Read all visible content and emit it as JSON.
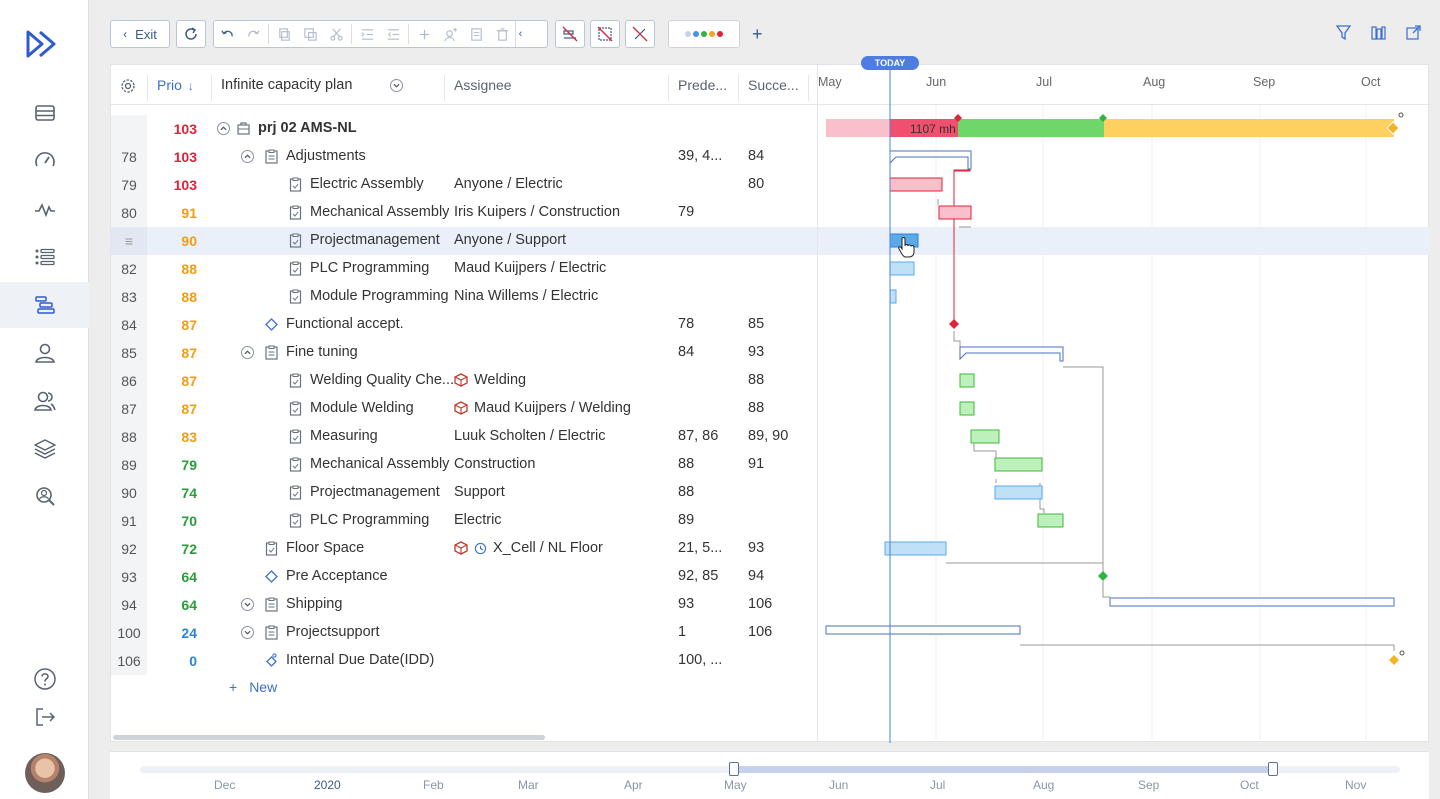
{
  "toolbar": {
    "exit_label": "Exit",
    "palette_colors": [
      "#c9d3e0",
      "#4a90e2",
      "#2fb344",
      "#f5a623",
      "#e0223a"
    ],
    "add_label": "+"
  },
  "grid": {
    "headers": {
      "prio": "Prio",
      "plan": "Infinite capacity plan",
      "assignee": "Assignee",
      "predecessors": "Prede...",
      "successors": "Succe..."
    },
    "colors": {
      "red": "#e0223a",
      "orange": "#f39c12",
      "green": "#2a9d3a",
      "blue": "#2c82d9"
    },
    "rows": [
      {
        "num": "",
        "prio": "103",
        "pc": "red",
        "name": "prj 02 AMS-NL",
        "assignee": "",
        "pred": "",
        "succ": "",
        "level": 0,
        "type": "project",
        "toggle": "up"
      },
      {
        "num": "78",
        "prio": "103",
        "pc": "red",
        "name": "Adjustments",
        "assignee": "",
        "pred": "39, 4...",
        "succ": "84",
        "level": 1,
        "type": "group",
        "toggle": "up"
      },
      {
        "num": "79",
        "prio": "103",
        "pc": "red",
        "name": "Electric Assembly",
        "assignee": "Anyone / Electric",
        "pred": "",
        "succ": "80",
        "level": 2,
        "type": "task"
      },
      {
        "num": "80",
        "prio": "91",
        "pc": "orange",
        "name": "Mechanical Assembly",
        "assignee": "Iris Kuipers / Construction",
        "pred": "79",
        "succ": "",
        "level": 2,
        "type": "task"
      },
      {
        "num": "",
        "prio": "90",
        "pc": "orange",
        "name": "Projectmanagement",
        "assignee": "Anyone / Support",
        "pred": "",
        "succ": "",
        "level": 2,
        "type": "task",
        "selected": true
      },
      {
        "num": "82",
        "prio": "88",
        "pc": "orange",
        "name": "PLC Programming",
        "assignee": "Maud Kuijpers / Electric",
        "pred": "",
        "succ": "",
        "level": 2,
        "type": "task"
      },
      {
        "num": "83",
        "prio": "88",
        "pc": "orange",
        "name": "Module Programming",
        "assignee": "Nina Willems / Electric",
        "pred": "",
        "succ": "",
        "level": 2,
        "type": "task"
      },
      {
        "num": "84",
        "prio": "87",
        "pc": "orange",
        "name": "Functional accept.",
        "assignee": "",
        "pred": "78",
        "succ": "85",
        "level": 1,
        "type": "milestone"
      },
      {
        "num": "85",
        "prio": "87",
        "pc": "orange",
        "name": "Fine tuning",
        "assignee": "",
        "pred": "84",
        "succ": "93",
        "level": 1,
        "type": "group",
        "toggle": "up"
      },
      {
        "num": "86",
        "prio": "87",
        "pc": "orange",
        "name": "Welding Quality Che...",
        "assignee": "Welding",
        "pred": "",
        "succ": "88",
        "level": 2,
        "type": "task",
        "resource": true
      },
      {
        "num": "87",
        "prio": "87",
        "pc": "orange",
        "name": "Module Welding",
        "assignee": "Maud Kuijpers / Welding",
        "pred": "",
        "succ": "88",
        "level": 2,
        "type": "task",
        "resource": true
      },
      {
        "num": "88",
        "prio": "83",
        "pc": "orange",
        "name": "Measuring",
        "assignee": "Luuk Scholten / Electric",
        "pred": "87, 86",
        "succ": "89, 90",
        "level": 2,
        "type": "task"
      },
      {
        "num": "89",
        "prio": "79",
        "pc": "green",
        "name": "Mechanical Assembly",
        "assignee": "Construction",
        "pred": "88",
        "succ": "91",
        "level": 2,
        "type": "task"
      },
      {
        "num": "90",
        "prio": "74",
        "pc": "green",
        "name": "Projectmanagement",
        "assignee": "Support",
        "pred": "88",
        "succ": "",
        "level": 2,
        "type": "task"
      },
      {
        "num": "91",
        "prio": "70",
        "pc": "green",
        "name": "PLC Programming",
        "assignee": "Electric",
        "pred": "89",
        "succ": "",
        "level": 2,
        "type": "task"
      },
      {
        "num": "92",
        "prio": "72",
        "pc": "green",
        "name": "Floor Space",
        "assignee": "X_Cell / NL Floor",
        "pred": "21, 5...",
        "succ": "93",
        "level": 1,
        "type": "task",
        "resource": true,
        "clock": true
      },
      {
        "num": "93",
        "prio": "64",
        "pc": "green",
        "name": "Pre Acceptance",
        "assignee": "",
        "pred": "92, 85",
        "succ": "94",
        "level": 1,
        "type": "milestone"
      },
      {
        "num": "94",
        "prio": "64",
        "pc": "green",
        "name": "Shipping",
        "assignee": "",
        "pred": "93",
        "succ": "106",
        "level": 1,
        "type": "group",
        "toggle": "down"
      },
      {
        "num": "100",
        "prio": "24",
        "pc": "blue",
        "name": "Projectsupport",
        "assignee": "",
        "pred": "1",
        "succ": "106",
        "level": 1,
        "type": "group",
        "toggle": "down"
      },
      {
        "num": "106",
        "prio": "0",
        "pc": "blue",
        "name": "Internal Due Date(IDD)",
        "assignee": "",
        "pred": "100, ...",
        "succ": "",
        "level": 1,
        "type": "due"
      }
    ],
    "new_label": "New"
  },
  "gantt": {
    "months": [
      "May",
      "Jun",
      "Jul",
      "Aug",
      "Sep",
      "Oct"
    ],
    "today_label": "TODAY",
    "summary_label": "1107 mh"
  },
  "timeline": {
    "months": [
      "Dec",
      "2020",
      "Feb",
      "Mar",
      "Apr",
      "May",
      "Jun",
      "Jul",
      "Aug",
      "Sep",
      "Oct",
      "Nov"
    ]
  }
}
